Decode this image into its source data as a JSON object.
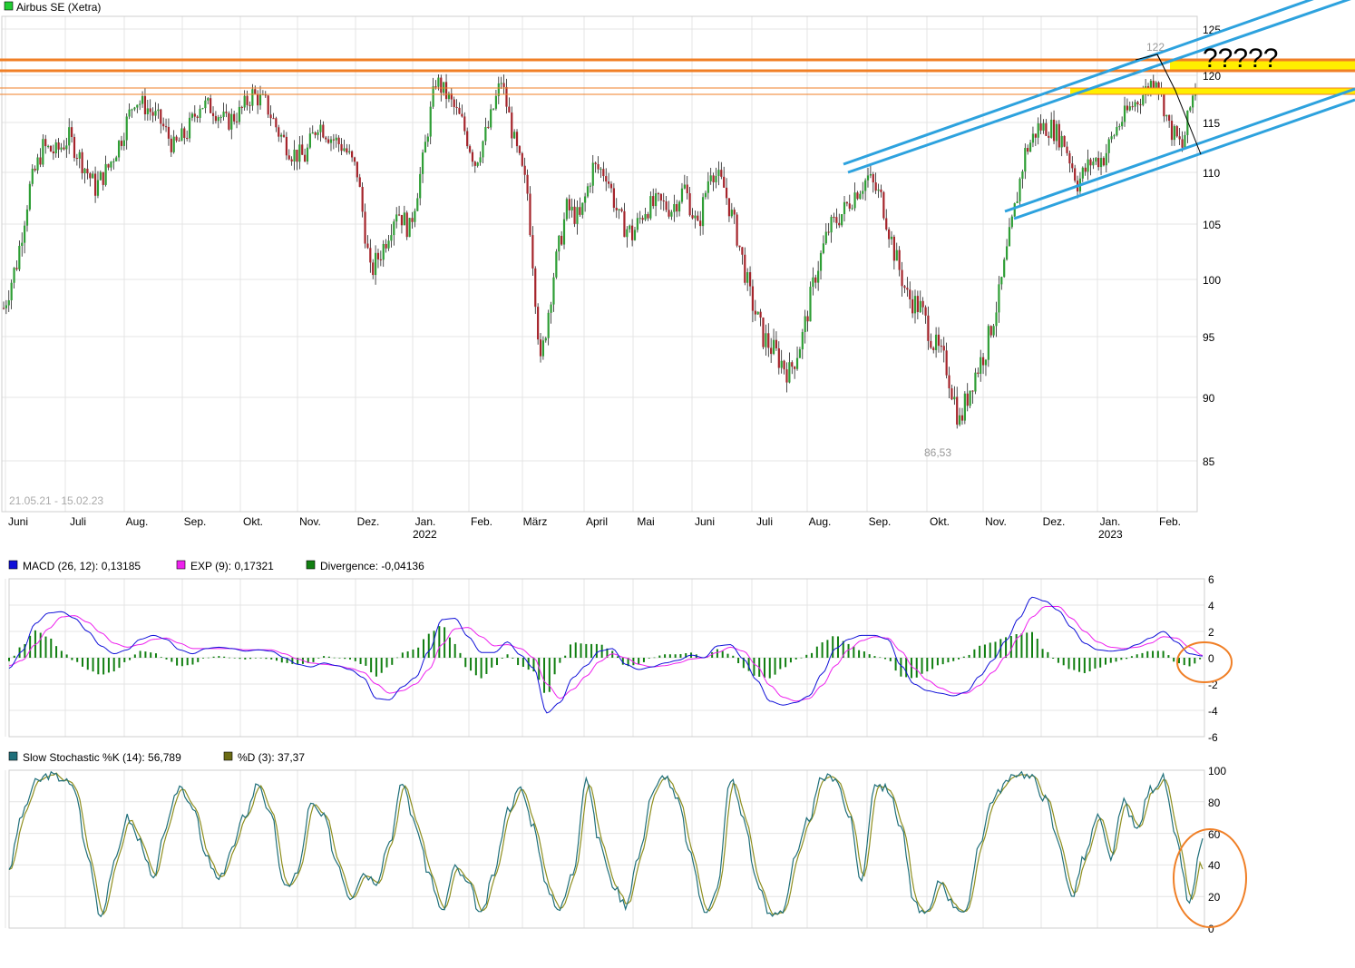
{
  "colors": {
    "up": "#2e9e35",
    "down": "#a5242b",
    "grid": "#e4e4e4",
    "axis": "#b8b8b8",
    "text": "#000000",
    "muted": "#999999",
    "macd": "#1010d8",
    "signal": "#ee22ee",
    "divergence": "#117f11",
    "stochK": "#1f6f7a",
    "stochD": "#8f8f1f",
    "orange": "#f07f26",
    "yellow": "#ffee00",
    "channel": "#2da2de",
    "ellipse": "#f07f26"
  },
  "price_panel": {
    "title": "Airbus SE (Xetra)",
    "title_icon": "green-square-icon",
    "date_range": "21.05.21 - 15.02.23",
    "y_ticks": [
      "125",
      "120",
      "115",
      "110",
      "105",
      "100",
      "95",
      "90",
      "85"
    ],
    "months": [
      "Juni",
      "Juli",
      "Aug.",
      "Sep.",
      "Okt.",
      "Nov.",
      "Dez.",
      "Jan.",
      "Feb.",
      "März",
      "April",
      "Mai",
      "Juni",
      "Juli",
      "Aug.",
      "Sep.",
      "Okt.",
      "Nov.",
      "Dez.",
      "Jan.",
      "Feb."
    ],
    "years": [
      "2022",
      "2023"
    ],
    "high_label": "122",
    "low_label": "86,53",
    "annotation": "?????"
  },
  "macd_panel": {
    "legend": [
      {
        "label": "MACD (26, 12): 0,13185",
        "icon": "blue-square-icon"
      },
      {
        "label": "EXP (9): 0,17321",
        "icon": "magenta-square-icon"
      },
      {
        "label": "Divergence: -0,04136",
        "icon": "green-square-icon"
      }
    ],
    "y_ticks": [
      "6",
      "4",
      "2",
      "0",
      "-2",
      "-4",
      "-6"
    ]
  },
  "stoch_panel": {
    "legend": [
      {
        "label": "Slow Stochastic %K (14): 56,789",
        "icon": "teal-square-icon"
      },
      {
        "label": "%D (3): 37,37",
        "icon": "olive-square-icon"
      }
    ],
    "y_ticks": [
      "100",
      "80",
      "60",
      "40",
      "20",
      "0"
    ]
  },
  "chart_data": [
    {
      "type": "candlestick",
      "title": "Airbus SE (Xetra)",
      "period": "21.05.21 - 15.02.23",
      "ylim": [
        81,
        126
      ],
      "x": [
        "2021-05-21",
        "2021-05-28",
        "2021-06-04",
        "2021-06-11",
        "2021-06-18",
        "2021-06-25",
        "2021-07-02",
        "2021-07-09",
        "2021-07-16",
        "2021-07-23",
        "2021-07-30",
        "2021-08-06",
        "2021-08-13",
        "2021-08-20",
        "2021-08-27",
        "2021-09-03",
        "2021-09-10",
        "2021-09-17",
        "2021-09-24",
        "2021-10-01",
        "2021-10-08",
        "2021-10-15",
        "2021-10-22",
        "2021-10-29",
        "2021-11-05",
        "2021-11-12",
        "2021-11-19",
        "2021-11-26",
        "2021-12-03",
        "2021-12-10",
        "2021-12-17",
        "2021-12-24",
        "2021-12-31",
        "2022-01-07",
        "2022-01-14",
        "2022-01-21",
        "2022-01-28",
        "2022-02-04",
        "2022-02-11",
        "2022-02-18",
        "2022-02-25",
        "2022-03-04",
        "2022-03-11",
        "2022-03-18",
        "2022-03-25",
        "2022-04-01",
        "2022-04-08",
        "2022-04-15",
        "2022-04-22",
        "2022-04-29",
        "2022-05-06",
        "2022-05-13",
        "2022-05-20",
        "2022-05-27",
        "2022-06-03",
        "2022-06-10",
        "2022-06-17",
        "2022-06-24",
        "2022-07-01",
        "2022-07-08",
        "2022-07-15",
        "2022-07-22",
        "2022-07-29",
        "2022-08-05",
        "2022-08-12",
        "2022-08-19",
        "2022-08-26",
        "2022-09-02",
        "2022-09-09",
        "2022-09-16",
        "2022-09-23",
        "2022-09-30",
        "2022-10-07",
        "2022-10-14",
        "2022-10-21",
        "2022-10-28",
        "2022-11-04",
        "2022-11-11",
        "2022-11-18",
        "2022-11-25",
        "2022-12-02",
        "2022-12-09",
        "2022-12-16",
        "2022-12-23",
        "2022-12-30",
        "2023-01-06",
        "2023-01-13",
        "2023-01-20",
        "2023-01-27",
        "2023-02-03",
        "2023-02-10",
        "2023-02-15"
      ],
      "close": [
        97.5,
        101.5,
        108.5,
        112.5,
        112.0,
        113.5,
        111.0,
        108.5,
        110.5,
        113.5,
        117.5,
        116.5,
        115.0,
        112.5,
        114.0,
        117.0,
        116.5,
        115.0,
        116.0,
        118.0,
        117.0,
        114.0,
        112.0,
        111.5,
        115.0,
        113.5,
        112.5,
        110.0,
        100.5,
        103.0,
        106.5,
        104.5,
        111.0,
        119.5,
        117.5,
        115.0,
        111.0,
        114.5,
        119.5,
        113.0,
        108.0,
        92.5,
        100.5,
        106.5,
        105.5,
        110.5,
        110.0,
        105.5,
        104.0,
        106.5,
        107.0,
        106.5,
        108.5,
        104.5,
        110.5,
        108.5,
        104.0,
        98.5,
        95.0,
        93.5,
        92.0,
        95.0,
        100.5,
        104.5,
        106.0,
        108.0,
        109.5,
        107.5,
        102.5,
        98.5,
        97.5,
        94.5,
        92.5,
        88.0,
        91.5,
        94.0,
        98.5,
        105.0,
        112.0,
        114.5,
        114.5,
        113.0,
        109.0,
        111.0,
        111.5,
        114.5,
        116.5,
        118.0,
        120.0,
        114.5,
        112.5,
        119.2
      ],
      "high_marker": {
        "x": "2023-01-24",
        "y": 122
      },
      "low_marker": {
        "x": "2022-09-29",
        "y": 86.53
      },
      "levels": [
        {
          "y": 121.5,
          "color": "orange"
        },
        {
          "y": 121.0,
          "color": "orange"
        },
        {
          "y": 118.5,
          "color": "orange"
        },
        {
          "y": 117.8,
          "color": "orange"
        }
      ],
      "zones": [
        {
          "y": [
            120.8,
            121.8
          ],
          "color": "yellow"
        },
        {
          "y": [
            117.8,
            118.6
          ],
          "color": "yellow"
        }
      ]
    },
    {
      "type": "line",
      "name": "MACD",
      "ylim": [
        -6,
        6
      ],
      "series": [
        {
          "name": "MACD (26, 12)",
          "last": 0.13185
        },
        {
          "name": "EXP (9)",
          "last": 0.17321
        },
        {
          "name": "Divergence",
          "last": -0.04136
        }
      ],
      "macd": [
        -0.8,
        0.5,
        2.6,
        3.4,
        3.5,
        3.0,
        2.0,
        0.9,
        0.3,
        0.6,
        1.4,
        1.7,
        1.4,
        0.6,
        0.3,
        0.7,
        0.8,
        0.7,
        0.5,
        0.6,
        0.5,
        0.0,
        -0.5,
        -0.7,
        -0.4,
        -0.6,
        -0.9,
        -1.5,
        -3.1,
        -3.2,
        -2.2,
        -1.5,
        0.5,
        2.9,
        3.0,
        1.6,
        0.4,
        0.4,
        1.2,
        0.2,
        -0.8,
        -4.2,
        -3.4,
        -1.5,
        -0.6,
        0.5,
        0.7,
        -0.5,
        -0.9,
        -0.7,
        -0.4,
        -0.2,
        0.2,
        0.0,
        0.9,
        1.0,
        -0.1,
        -1.7,
        -3.3,
        -3.6,
        -3.4,
        -2.9,
        -1.2,
        0.7,
        1.4,
        1.7,
        1.7,
        1.4,
        -0.6,
        -2.0,
        -2.5,
        -2.7,
        -2.9,
        -2.6,
        -1.4,
        -0.2,
        1.3,
        3.0,
        4.6,
        4.3,
        3.6,
        2.3,
        1.1,
        0.6,
        0.5,
        0.6,
        1.0,
        1.5,
        2.0,
        1.2,
        0.3,
        0.13
      ],
      "signal": [
        -0.6,
        -0.2,
        1.0,
        2.2,
        3.1,
        3.2,
        2.7,
        1.9,
        1.1,
        0.8,
        1.0,
        1.4,
        1.5,
        1.1,
        0.7,
        0.7,
        0.7,
        0.7,
        0.6,
        0.6,
        0.6,
        0.3,
        -0.1,
        -0.4,
        -0.5,
        -0.6,
        -0.8,
        -1.1,
        -2.0,
        -2.7,
        -2.5,
        -2.0,
        -0.9,
        1.0,
        2.2,
        2.3,
        1.6,
        0.9,
        1.0,
        0.7,
        0.0,
        -2.0,
        -3.1,
        -2.4,
        -1.4,
        -0.3,
        0.3,
        0.0,
        -0.5,
        -0.7,
        -0.6,
        -0.4,
        -0.1,
        0.0,
        0.4,
        0.8,
        0.5,
        -0.6,
        -2.1,
        -3.0,
        -3.3,
        -3.1,
        -2.1,
        -0.6,
        0.6,
        1.3,
        1.6,
        1.5,
        0.5,
        -0.8,
        -1.7,
        -2.3,
        -2.7,
        -2.7,
        -2.1,
        -1.1,
        0.1,
        1.6,
        3.1,
        3.9,
        3.9,
        3.0,
        2.0,
        1.2,
        0.8,
        0.7,
        0.8,
        1.1,
        1.6,
        1.5,
        0.8,
        0.17
      ]
    },
    {
      "type": "line",
      "name": "Slow Stochastic",
      "ylim": [
        0,
        100
      ],
      "k_last": 56.789,
      "d_last": 37.37,
      "k": [
        38,
        72,
        92,
        97,
        95,
        88,
        45,
        8,
        40,
        70,
        55,
        30,
        65,
        90,
        78,
        45,
        30,
        50,
        72,
        92,
        70,
        25,
        35,
        78,
        70,
        42,
        20,
        35,
        30,
        55,
        92,
        65,
        35,
        10,
        38,
        28,
        8,
        35,
        75,
        88,
        65,
        25,
        12,
        35,
        96,
        55,
        28,
        15,
        45,
        85,
        97,
        80,
        45,
        10,
        25,
        95,
        70,
        30,
        8,
        12,
        45,
        70,
        95,
        96,
        72,
        30,
        92,
        88,
        65,
        15,
        8,
        30,
        15,
        10,
        55,
        82,
        92,
        99,
        95,
        82,
        55,
        20,
        45,
        70,
        45,
        80,
        62,
        88,
        95,
        55,
        15,
        57
      ]
    }
  ]
}
